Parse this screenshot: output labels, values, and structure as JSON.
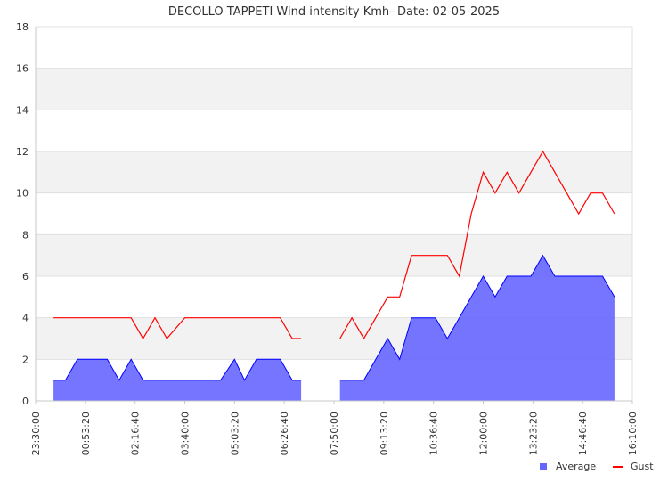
{
  "chart_data": {
    "type": "area",
    "title": "DECOLLO TAPPETI Wind intensity Kmh- Date: 02-05-2025",
    "xlabel": "",
    "ylabel": "",
    "ylim": [
      0,
      18
    ],
    "yticks": [
      0,
      2,
      4,
      6,
      8,
      10,
      12,
      14,
      16,
      18
    ],
    "xlim": [
      "23:30:00",
      "16:10:00"
    ],
    "xticks": [
      "23:30:00",
      "00:53:20",
      "02:16:40",
      "03:40:00",
      "05:03:20",
      "06:26:40",
      "07:50:00",
      "09:13:20",
      "10:36:40",
      "12:00:00",
      "13:23:20",
      "14:46:40",
      "16:10:00"
    ],
    "grid": "horizontal bands",
    "legend_position": "bottom-right",
    "series": [
      {
        "name": "Average",
        "color": "#6666ff",
        "style": "area",
        "points": [
          [
            "00:00:00",
            1
          ],
          [
            "00:20:00",
            1
          ],
          [
            "00:40:00",
            2
          ],
          [
            "00:53:20",
            2
          ],
          [
            "01:10:00",
            2
          ],
          [
            "01:30:00",
            2
          ],
          [
            "01:50:00",
            1
          ],
          [
            "02:10:00",
            2
          ],
          [
            "02:30:00",
            1
          ],
          [
            "02:50:00",
            1
          ],
          [
            "03:10:00",
            1
          ],
          [
            "03:40:00",
            1
          ],
          [
            "04:00:00",
            1
          ],
          [
            "04:20:00",
            1
          ],
          [
            "04:40:00",
            1
          ],
          [
            "05:03:20",
            2
          ],
          [
            "05:20:00",
            1
          ],
          [
            "05:40:00",
            2
          ],
          [
            "06:00:00",
            2
          ],
          [
            "06:20:00",
            2
          ],
          [
            "06:40:00",
            1
          ],
          [
            "06:55:00",
            1
          ],
          [
            "07:00:00",
            null
          ],
          [
            "07:55:00",
            null
          ],
          [
            "08:00:00",
            1
          ],
          [
            "08:20:00",
            1
          ],
          [
            "08:40:00",
            1
          ],
          [
            "09:00:00",
            2
          ],
          [
            "09:20:00",
            3
          ],
          [
            "09:40:00",
            2
          ],
          [
            "10:00:00",
            4
          ],
          [
            "10:20:00",
            4
          ],
          [
            "10:40:00",
            4
          ],
          [
            "11:00:00",
            3
          ],
          [
            "11:20:00",
            4
          ],
          [
            "11:40:00",
            5
          ],
          [
            "12:00:00",
            6
          ],
          [
            "12:20:00",
            5
          ],
          [
            "12:40:00",
            6
          ],
          [
            "13:00:00",
            6
          ],
          [
            "13:20:00",
            6
          ],
          [
            "13:40:00",
            7
          ],
          [
            "14:00:00",
            6
          ],
          [
            "14:20:00",
            6
          ],
          [
            "14:40:00",
            6
          ],
          [
            "15:00:00",
            6
          ],
          [
            "15:20:00",
            6
          ],
          [
            "15:40:00",
            5
          ]
        ]
      },
      {
        "name": "Gust",
        "color": "#ff0000",
        "style": "line",
        "points": [
          [
            "00:00:00",
            4
          ],
          [
            "00:20:00",
            4
          ],
          [
            "00:40:00",
            4
          ],
          [
            "00:53:20",
            4
          ],
          [
            "01:10:00",
            4
          ],
          [
            "01:30:00",
            4
          ],
          [
            "01:50:00",
            4
          ],
          [
            "02:10:00",
            4
          ],
          [
            "02:30:00",
            3
          ],
          [
            "02:50:00",
            4
          ],
          [
            "03:10:00",
            3
          ],
          [
            "03:40:00",
            4
          ],
          [
            "04:00:00",
            4
          ],
          [
            "04:20:00",
            4
          ],
          [
            "04:40:00",
            4
          ],
          [
            "05:03:20",
            4
          ],
          [
            "05:20:00",
            4
          ],
          [
            "05:40:00",
            4
          ],
          [
            "06:00:00",
            4
          ],
          [
            "06:20:00",
            4
          ],
          [
            "06:40:00",
            3
          ],
          [
            "06:55:00",
            3
          ],
          [
            "07:00:00",
            null
          ],
          [
            "07:55:00",
            null
          ],
          [
            "08:00:00",
            3
          ],
          [
            "08:20:00",
            4
          ],
          [
            "08:40:00",
            3
          ],
          [
            "09:00:00",
            4
          ],
          [
            "09:20:00",
            5
          ],
          [
            "09:40:00",
            5
          ],
          [
            "10:00:00",
            7
          ],
          [
            "10:20:00",
            7
          ],
          [
            "10:40:00",
            7
          ],
          [
            "11:00:00",
            7
          ],
          [
            "11:20:00",
            6
          ],
          [
            "11:40:00",
            9
          ],
          [
            "12:00:00",
            11
          ],
          [
            "12:20:00",
            10
          ],
          [
            "12:40:00",
            11
          ],
          [
            "13:00:00",
            10
          ],
          [
            "13:20:00",
            11
          ],
          [
            "13:40:00",
            12
          ],
          [
            "14:00:00",
            11
          ],
          [
            "14:20:00",
            10
          ],
          [
            "14:40:00",
            9
          ],
          [
            "15:00:00",
            10
          ],
          [
            "15:20:00",
            10
          ],
          [
            "15:40:00",
            9
          ]
        ]
      }
    ]
  }
}
